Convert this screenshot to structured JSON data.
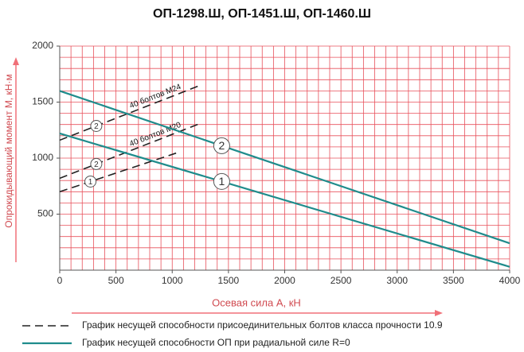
{
  "chart_data": {
    "type": "line",
    "title": "ОП-1298.Ш, ОП-1451.Ш, ОП-1460.Ш",
    "x_label": "Осевая сила А, кН",
    "y_label": "Опрокидывающий момент М, кН·м",
    "xlim": [
      0,
      4000
    ],
    "xticks": [
      0,
      500,
      1000,
      1500,
      2000,
      2500,
      3000,
      3500,
      4000
    ],
    "ylim": [
      0,
      2000
    ],
    "yticks": [
      500,
      1000,
      1500,
      2000
    ],
    "grid": true,
    "grid_step": 100,
    "grid_color": "#e8505b",
    "series": [
      {
        "name": "40 болтов M24",
        "marker": "2",
        "style": "dashed",
        "color": "#222222",
        "x": [
          0,
          1250
        ],
        "values": [
          1160,
          1650
        ]
      },
      {
        "name": "40 болтов M20",
        "marker": "2",
        "style": "dashed",
        "color": "#222222",
        "x": [
          0,
          1250
        ],
        "values": [
          820,
          1310
        ]
      },
      {
        "marker": "1",
        "style": "dashed",
        "color": "#222222",
        "x": [
          0,
          1050
        ],
        "values": [
          700,
          1050
        ]
      },
      {
        "marker": "2",
        "style": "solid",
        "color": "#1f8c8c",
        "x": [
          0,
          4000
        ],
        "values": [
          1600,
          240
        ]
      },
      {
        "marker": "1",
        "style": "solid",
        "color": "#1f8c8c",
        "x": [
          0,
          4000
        ],
        "values": [
          1220,
          30
        ]
      }
    ],
    "legend": [
      {
        "label": "График несущей способности присоединительных болтов класса прочности 10.9",
        "style": "dashed",
        "color": "#222222"
      },
      {
        "label": "График несущей способности ОП при радиальной силе R=0",
        "style": "solid",
        "color": "#1f8c8c"
      }
    ]
  }
}
